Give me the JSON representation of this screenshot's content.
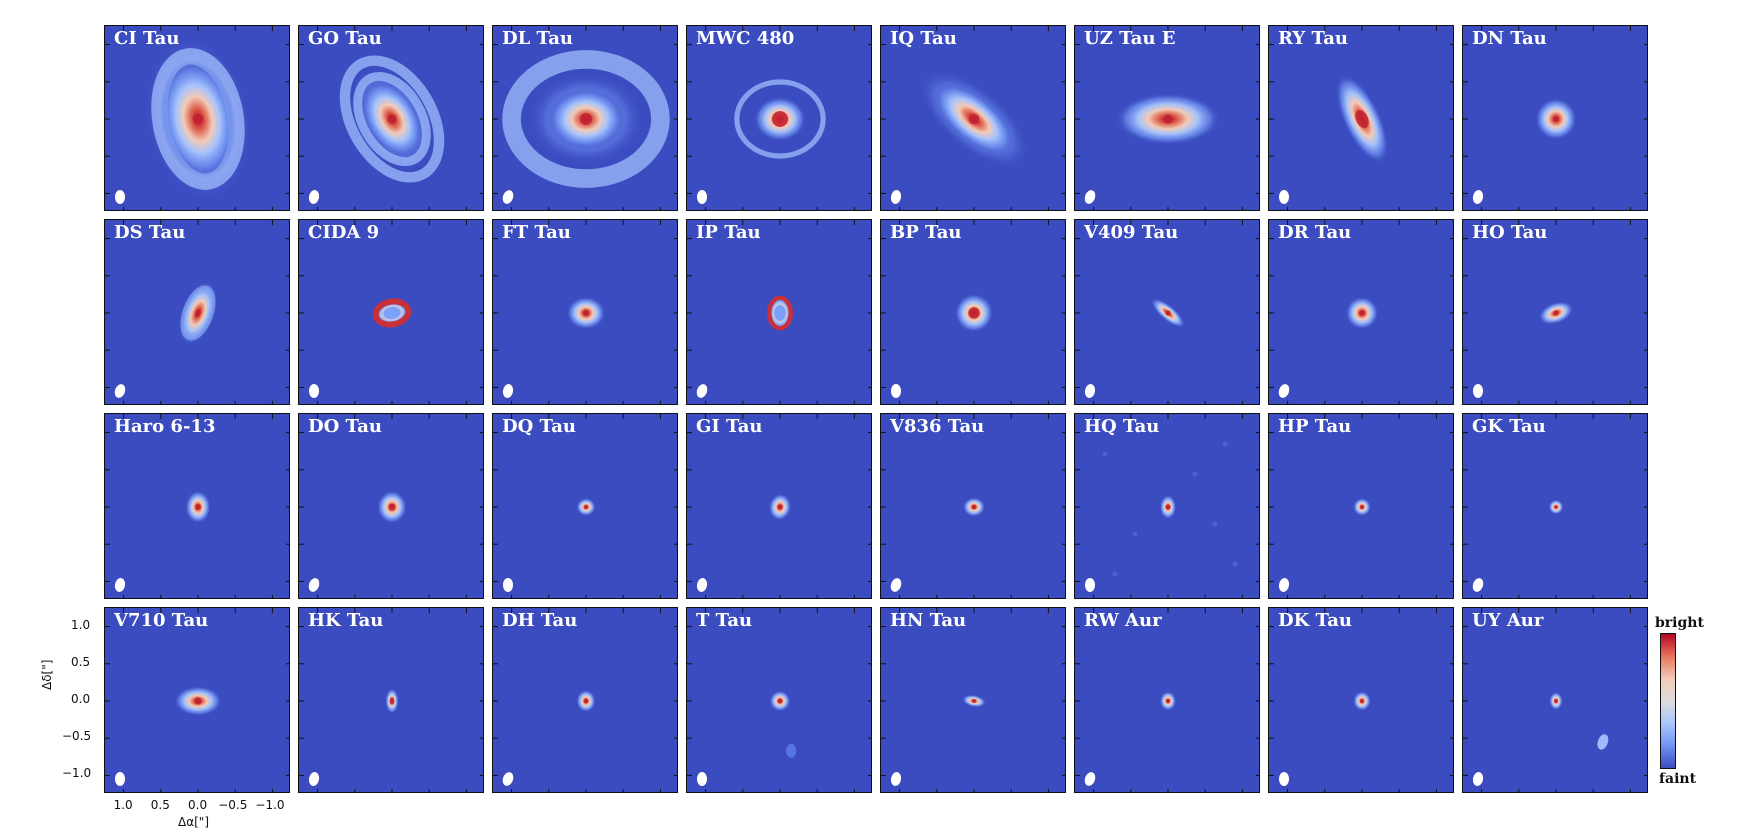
{
  "figure": {
    "panels": [
      {
        "name": "CI Tau",
        "disk": {
          "rx": 0.5,
          "ry": 0.8,
          "rot": -10,
          "core": 0.16
        },
        "rings": [
          {
            "r": 0.85,
            "w": 0.22,
            "rx": 0.95,
            "ry": 1.0
          }
        ],
        "extra": "halo"
      },
      {
        "name": "GO Tau",
        "disk": {
          "rx": 0.35,
          "ry": 0.55,
          "rot": -30,
          "core": 0.14
        },
        "rings": [
          {
            "r": 0.62,
            "w": 0.12
          },
          {
            "r": 0.85,
            "w": 0.14
          }
        ],
        "extra": "halo"
      },
      {
        "name": "DL Tau",
        "disk": {
          "rx": 0.5,
          "ry": 0.4,
          "rot": 0,
          "core": 0.18
        },
        "rings": [
          {
            "r": 1.0,
            "w": 0.25
          }
        ],
        "extra": "wide"
      },
      {
        "name": "MWC 480",
        "disk": {
          "rx": 0.35,
          "ry": 0.3,
          "rot": 0,
          "core": 0.24
        },
        "rings": [
          {
            "r": 0.58,
            "w": 0.07
          }
        ],
        "extra": ""
      },
      {
        "name": "IQ Tau",
        "disk": {
          "rx": 0.65,
          "ry": 0.3,
          "rot": 40,
          "core": 0.16
        },
        "rings": [],
        "extra": "halo"
      },
      {
        "name": "UZ Tau E",
        "disk": {
          "rx": 0.7,
          "ry": 0.35,
          "rot": 0,
          "core": 0.14
        },
        "rings": [],
        "extra": ""
      },
      {
        "name": "RY Tau",
        "disk": {
          "rx": 0.25,
          "ry": 0.65,
          "rot": -25,
          "core": 0.18
        },
        "rings": [],
        "extra": ""
      },
      {
        "name": "DN Tau",
        "disk": {
          "rx": 0.28,
          "ry": 0.28,
          "rot": 0,
          "core": 0.09
        },
        "rings": [],
        "extra": ""
      },
      {
        "name": "DS Tau",
        "disk": {
          "rx": 0.22,
          "ry": 0.45,
          "rot": 20,
          "core": 0.08
        },
        "rings": [
          {
            "r": 0.35,
            "w": 0.07
          }
        ],
        "extra": ""
      },
      {
        "name": "CIDA 9",
        "disk": {
          "rx": 0.26,
          "ry": 0.18,
          "rot": -10,
          "core": 0.0
        },
        "rings": [
          {
            "r": 0.2,
            "w": 0.08,
            "red": true
          }
        ],
        "extra": ""
      },
      {
        "name": "FT Tau",
        "disk": {
          "rx": 0.26,
          "ry": 0.22,
          "rot": 0,
          "core": 0.1
        },
        "rings": [],
        "extra": ""
      },
      {
        "name": "IP Tau",
        "disk": {
          "rx": 0.17,
          "ry": 0.24,
          "rot": 0,
          "core": 0.0
        },
        "rings": [
          {
            "r": 0.19,
            "w": 0.06,
            "red": true
          }
        ],
        "extra": ""
      },
      {
        "name": "BP Tau",
        "disk": {
          "rx": 0.26,
          "ry": 0.26,
          "rot": 15,
          "core": 0.17
        },
        "rings": [],
        "extra": ""
      },
      {
        "name": "V409 Tau",
        "disk": {
          "rx": 0.28,
          "ry": 0.1,
          "rot": 40,
          "core": 0.08
        },
        "rings": [],
        "extra": ""
      },
      {
        "name": "DR Tau",
        "disk": {
          "rx": 0.22,
          "ry": 0.22,
          "rot": 0,
          "core": 0.09
        },
        "rings": [],
        "extra": ""
      },
      {
        "name": "HO Tau",
        "disk": {
          "rx": 0.24,
          "ry": 0.14,
          "rot": -20,
          "core": 0.08
        },
        "rings": [],
        "extra": ""
      },
      {
        "name": "Haro 6-13",
        "disk": {
          "rx": 0.17,
          "ry": 0.22,
          "rot": 0,
          "core": 0.09
        },
        "rings": [],
        "extra": ""
      },
      {
        "name": "DO Tau",
        "disk": {
          "rx": 0.2,
          "ry": 0.22,
          "rot": 0,
          "core": 0.1
        },
        "rings": [],
        "extra": ""
      },
      {
        "name": "DQ Tau",
        "disk": {
          "rx": 0.13,
          "ry": 0.12,
          "rot": 0,
          "core": 0.06
        },
        "rings": [],
        "extra": ""
      },
      {
        "name": "GI Tau",
        "disk": {
          "rx": 0.15,
          "ry": 0.18,
          "rot": 10,
          "core": 0.08
        },
        "rings": [],
        "extra": ""
      },
      {
        "name": "V836 Tau",
        "disk": {
          "rx": 0.15,
          "ry": 0.13,
          "rot": 0,
          "core": 0.07
        },
        "rings": [],
        "extra": ""
      },
      {
        "name": "HQ Tau",
        "disk": {
          "rx": 0.11,
          "ry": 0.16,
          "rot": 0,
          "core": 0.08
        },
        "rings": [],
        "extra": "noise"
      },
      {
        "name": "HP Tau",
        "disk": {
          "rx": 0.12,
          "ry": 0.12,
          "rot": 0,
          "core": 0.06
        },
        "rings": [],
        "extra": ""
      },
      {
        "name": "GK Tau",
        "disk": {
          "rx": 0.1,
          "ry": 0.1,
          "rot": 0,
          "core": 0.05
        },
        "rings": [],
        "extra": ""
      },
      {
        "name": "V710 Tau",
        "disk": {
          "rx": 0.32,
          "ry": 0.2,
          "rot": 0,
          "core": 0.11
        },
        "rings": [],
        "extra": ""
      },
      {
        "name": "HK Tau",
        "disk": {
          "rx": 0.09,
          "ry": 0.17,
          "rot": 0,
          "core": 0.07
        },
        "rings": [],
        "extra": ""
      },
      {
        "name": "DH Tau",
        "disk": {
          "rx": 0.13,
          "ry": 0.15,
          "rot": 0,
          "core": 0.07
        },
        "rings": [],
        "extra": ""
      },
      {
        "name": "T Tau",
        "disk": {
          "rx": 0.14,
          "ry": 0.14,
          "rot": 0,
          "core": 0.07
        },
        "rings": [],
        "extra": "companion-tt"
      },
      {
        "name": "HN Tau",
        "disk": {
          "rx": 0.16,
          "ry": 0.08,
          "rot": 10,
          "core": 0.06
        },
        "rings": [],
        "extra": ""
      },
      {
        "name": "RW Aur",
        "disk": {
          "rx": 0.11,
          "ry": 0.13,
          "rot": 0,
          "core": 0.06
        },
        "rings": [],
        "extra": ""
      },
      {
        "name": "DK Tau",
        "disk": {
          "rx": 0.12,
          "ry": 0.13,
          "rot": 0,
          "core": 0.06
        },
        "rings": [],
        "extra": ""
      },
      {
        "name": "UY Aur",
        "disk": {
          "rx": 0.09,
          "ry": 0.12,
          "rot": 0,
          "core": 0.06
        },
        "rings": [],
        "extra": "companion-uy"
      }
    ],
    "y_ticks": [
      "1.0",
      "0.5",
      "0.0",
      "−0.5",
      "−1.0"
    ],
    "x_ticks": [
      "1.0",
      "0.5",
      "0.0",
      "−0.5",
      "−1.0"
    ],
    "y_label": "Δδ[\"]",
    "x_label": "Δα[\"]",
    "colorbar": {
      "top_label": "bright",
      "bottom_label": "faint"
    },
    "colors": {
      "background": "#3b4cc0",
      "peak": "#b40426",
      "mid": "#dddcdc",
      "beam": "#ffffff"
    }
  }
}
